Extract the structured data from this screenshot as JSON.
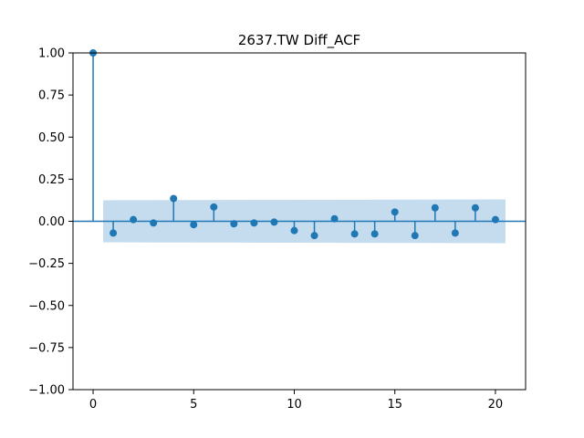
{
  "chart_data": {
    "type": "stem",
    "title": "2637.TW Diff_ACF",
    "xlabel": "",
    "ylabel": "",
    "xlim": [
      -1,
      21.5
    ],
    "ylim": [
      -1.0,
      1.0
    ],
    "x_ticks": [
      0,
      5,
      10,
      15,
      20
    ],
    "y_ticks": [
      -1.0,
      -0.75,
      -0.5,
      -0.25,
      0.0,
      0.25,
      0.5,
      0.75,
      1.0
    ],
    "x_tick_labels": [
      "0",
      "5",
      "10",
      "15",
      "20"
    ],
    "y_tick_labels": [
      "−1.00",
      "−0.75",
      "−0.50",
      "−0.25",
      "0.00",
      "0.25",
      "0.50",
      "0.75",
      "1.00"
    ],
    "grid": false,
    "series": [
      {
        "lags": [
          0,
          1,
          2,
          3,
          4,
          5,
          6,
          7,
          8,
          9,
          10,
          11,
          12,
          13,
          14,
          15,
          16,
          17,
          18,
          19,
          20
        ],
        "values": [
          1.0,
          -0.07,
          0.01,
          -0.01,
          0.135,
          -0.02,
          0.085,
          -0.015,
          -0.01,
          -0.005,
          -0.055,
          -0.085,
          0.015,
          -0.075,
          -0.075,
          0.055,
          -0.085,
          0.08,
          -0.07,
          0.08,
          0.01
        ]
      }
    ],
    "confidence_band": {
      "x": [
        0.5,
        20.5
      ],
      "upper": [
        0.125,
        0.13
      ],
      "lower": [
        -0.125,
        -0.13
      ]
    },
    "colors": {
      "stem": "#1f77b4",
      "band": "#c5dcee",
      "axis": "#000000"
    }
  }
}
